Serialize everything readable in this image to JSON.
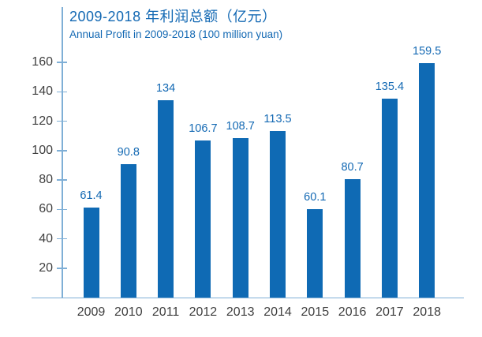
{
  "chart_data": {
    "type": "bar",
    "title": "2009-2018 年利润总额（亿元）",
    "subtitle": "Annual Profit in 2009-2018 (100 million yuan)",
    "categories": [
      "2009",
      "2010",
      "2011",
      "2012",
      "2013",
      "2014",
      "2015",
      "2016",
      "2017",
      "2018"
    ],
    "values": [
      61.4,
      90.8,
      134,
      106.7,
      108.7,
      113.5,
      60.1,
      80.7,
      135.4,
      159.5
    ],
    "value_labels": [
      "61.4",
      "90.8",
      "134",
      "106.7",
      "108.7",
      "113.5",
      "60.1",
      "80.7",
      "135.4",
      "159.5"
    ],
    "y_ticks": [
      20,
      40,
      60,
      80,
      100,
      120,
      140,
      160
    ],
    "ylim": [
      0,
      170
    ],
    "xlabel": "",
    "ylabel": "",
    "legend": "none",
    "grid": false,
    "colors": {
      "bar": "#0f6ab4",
      "value_label": "#1268b3",
      "title": "#1268b3",
      "axis_line": "#7fafd6",
      "tick_label": "#3f3f3f"
    }
  }
}
